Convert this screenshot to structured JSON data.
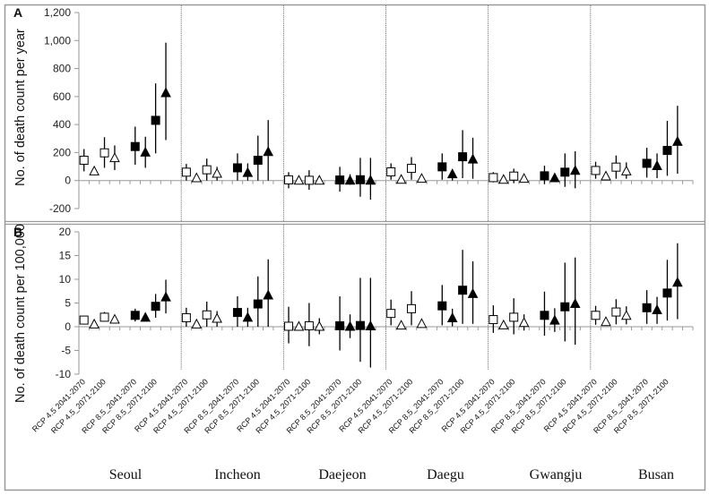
{
  "chart_data": [
    {
      "type": "scatter",
      "panel_label": "A",
      "ylabel": "No. of death count per year",
      "ylim": [
        -200,
        1200
      ],
      "yticks": [
        "-200",
        "0",
        "200",
        "400",
        "600",
        "800",
        "1,000",
        "1,200"
      ],
      "ytick_values": [
        -200,
        0,
        200,
        400,
        600,
        800,
        1000,
        1200
      ],
      "grid": false,
      "cities": [
        "Seoul",
        "Incheon",
        "Daejeon",
        "Daegu",
        "Gwangju",
        "Busan"
      ],
      "categories": [
        "RCP 4.5 2041-2070",
        "RCP 4.5_2071-2100",
        "RCP 8.5_2041-2070",
        "RCP 8.5_2071-2100"
      ],
      "series": [
        {
          "marker": "square",
          "values": [
            [
              [
                145,
                66,
                225
              ],
              [
                198,
                91,
                310
              ],
              [
                243,
                113,
                385
              ],
              [
                430,
                194,
                694
              ]
            ],
            [
              [
                60,
                0,
                119
              ],
              [
                77,
                0,
                157
              ],
              [
                91,
                0,
                194
              ],
              [
                145,
                0,
                321
              ]
            ],
            [
              [
                5,
                -55,
                60
              ],
              [
                2,
                -66,
                74
              ],
              [
                4,
                -79,
                98
              ],
              [
                6,
                -115,
                162
              ]
            ],
            [
              [
                62,
                6,
                123
              ],
              [
                87,
                6,
                168
              ],
              [
                98,
                6,
                194
              ],
              [
                170,
                17,
                360
              ]
            ],
            [
              [
                21,
                -13,
                60
              ],
              [
                32,
                -19,
                85
              ],
              [
                34,
                -26,
                106
              ],
              [
                60,
                -45,
                194
              ]
            ],
            [
              [
                72,
                13,
                134
              ],
              [
                96,
                13,
                179
              ],
              [
                123,
                21,
                234
              ],
              [
                215,
                34,
                426
              ]
            ]
          ]
        },
        {
          "marker": "triangle",
          "values": [
            [
              [
                66,
                40,
                90
              ],
              [
                160,
                75,
                251
              ],
              [
                200,
                91,
                313
              ],
              [
                625,
                289,
                985
              ]
            ],
            [
              [
                17,
                5,
                30
              ],
              [
                49,
                0,
                98
              ],
              [
                55,
                0,
                123
              ],
              [
                204,
                0,
                432
              ]
            ],
            [
              [
                0,
                -10,
                10
              ],
              [
                0,
                -10,
                10
              ],
              [
                0,
                -30,
                45
              ],
              [
                0,
                -136,
                162
              ]
            ],
            [
              [
                6,
                0,
                12
              ],
              [
                13,
                5,
                20
              ],
              [
                45,
                0,
                81
              ],
              [
                151,
                13,
                306
              ]
            ],
            [
              [
                6,
                0,
                12
              ],
              [
                13,
                5,
                20
              ],
              [
                17,
                0,
                45
              ],
              [
                70,
                -55,
                209
              ]
            ],
            [
              [
                30,
                15,
                45
              ],
              [
                66,
                13,
                130
              ],
              [
                104,
                17,
                194
              ],
              [
                277,
                49,
                534
              ]
            ]
          ]
        }
      ]
    },
    {
      "type": "scatter",
      "panel_label": "B",
      "ylabel": "No. of death count per 100,000",
      "ylim": [
        -10,
        20
      ],
      "yticks": [
        "-10",
        "-5",
        "0",
        "5",
        "10",
        "15",
        "20"
      ],
      "ytick_values": [
        -10,
        -5,
        0,
        5,
        10,
        15,
        20
      ],
      "grid": false,
      "series": [
        {
          "marker": "square",
          "values": [
            [
              [
                1.4,
                1.1,
                1.7
              ],
              [
                2.0,
                1.1,
                3.1
              ],
              [
                2.4,
                1.1,
                3.8
              ],
              [
                4.3,
                1.9,
                6.9
              ]
            ],
            [
              [
                1.9,
                0,
                4.0
              ],
              [
                2.5,
                0,
                5.3
              ],
              [
                3.0,
                0,
                6.4
              ],
              [
                4.8,
                0,
                10.6
              ]
            ],
            [
              [
                0.1,
                -3.5,
                4.2
              ],
              [
                0.2,
                -4.1,
                5.0
              ],
              [
                0.2,
                -5.0,
                6.4
              ],
              [
                0.25,
                -7.4,
                10.3
              ]
            ],
            [
              [
                2.8,
                0.3,
                5.7
              ],
              [
                3.8,
                0.3,
                7.5
              ],
              [
                4.4,
                0.3,
                8.8
              ],
              [
                7.7,
                0.6,
                16.2
              ]
            ],
            [
              [
                1.5,
                -1.3,
                4.5
              ],
              [
                2.0,
                -1.6,
                6.0
              ],
              [
                2.4,
                -1.9,
                7.4
              ],
              [
                4.2,
                -3.1,
                13.5
              ]
            ],
            [
              [
                2.4,
                0.4,
                4.4
              ],
              [
                3.1,
                0.5,
                5.8
              ],
              [
                4.0,
                0.6,
                7.7
              ],
              [
                7.1,
                1.3,
                14.1
              ]
            ]
          ]
        },
        {
          "marker": "triangle",
          "values": [
            [
              [
                0.5,
                0.3,
                0.7
              ],
              [
                1.5,
                1.2,
                1.8
              ],
              [
                1.9,
                1.3,
                2.6
              ],
              [
                6.2,
                2.8,
                9.9
              ]
            ],
            [
              [
                0.5,
                0.3,
                0.7
              ],
              [
                1.7,
                0,
                3.3
              ],
              [
                1.9,
                0,
                4.0
              ],
              [
                6.6,
                0,
                14.2
              ]
            ],
            [
              [
                0,
                -0.3,
                0.3
              ],
              [
                0,
                -1.6,
                1.8
              ],
              [
                0,
                -2.4,
                2.6
              ],
              [
                0.1,
                -8.6,
                10.3
              ]
            ],
            [
              [
                0.25,
                0.1,
                0.4
              ],
              [
                0.6,
                0.4,
                0.8
              ],
              [
                1.8,
                0.1,
                3.8
              ],
              [
                6.9,
                0.6,
                13.8
              ]
            ],
            [
              [
                0.3,
                0.1,
                0.5
              ],
              [
                0.8,
                -0.8,
                2.6
              ],
              [
                1.3,
                -1.1,
                3.9
              ],
              [
                4.8,
                -3.8,
                14.6
              ]
            ],
            [
              [
                1.0,
                0.8,
                1.2
              ],
              [
                2.3,
                0.5,
                4.3
              ],
              [
                3.5,
                0.6,
                6.3
              ],
              [
                9.3,
                1.6,
                17.6
              ]
            ]
          ]
        }
      ]
    }
  ],
  "marker_fill": {
    "RCP 4.5": "#ffffff",
    "RCP 8.5": "#000000"
  },
  "colors": {
    "marker": "#000000",
    "border": "#9a9a9a",
    "divider": "#555555"
  }
}
